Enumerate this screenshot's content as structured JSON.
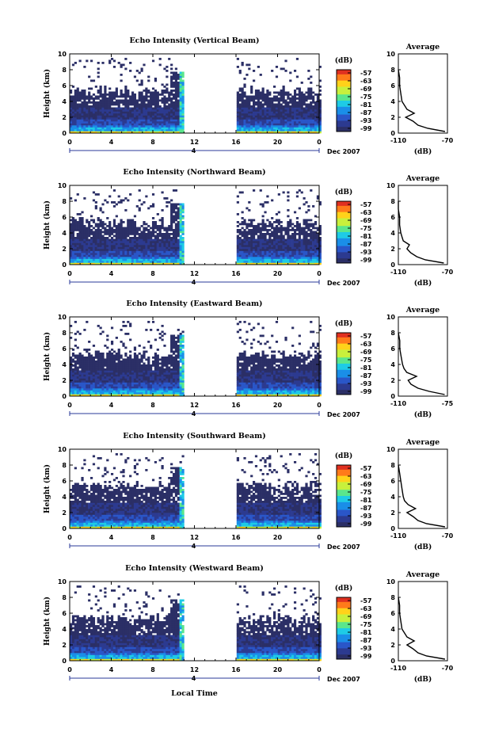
{
  "figure": {
    "xlabel": "Local Time",
    "date_label": "Dec 2007",
    "day_label": "4",
    "colorbar_unit": "(dB)",
    "colorbar_ticks": [
      "-57",
      "-63",
      "-69",
      "-75",
      "-81",
      "-87",
      "-93",
      "-99"
    ],
    "colorbar_colors": [
      "#e03020",
      "#ff7a1a",
      "#ffd21a",
      "#c8f03c",
      "#5ae68c",
      "#1ecbe6",
      "#1a8ee8",
      "#2a56c8",
      "#2c3a90",
      "#2b2f66"
    ],
    "average_title": "Average",
    "average_xlabel": "(dB)"
  },
  "chart_data": [
    {
      "type": "heatmap",
      "title": "Echo Intensity (Vertical Beam)",
      "ylabel": "Height (km)",
      "xlim": [
        0,
        24
      ],
      "ylim": [
        0,
        10
      ],
      "xticks": [
        "0",
        "4",
        "8",
        "12",
        "16",
        "20",
        "0"
      ],
      "yticks": [
        "0",
        "2",
        "4",
        "6",
        "8",
        "10"
      ],
      "color_range_db": [
        -99,
        -57
      ],
      "data_gaps_hours": [
        [
          11,
          16
        ]
      ],
      "average_profile": {
        "xlim": [
          -110,
          -70
        ],
        "xticks": [
          "-110",
          "-70"
        ],
        "height_km": [
          0.2,
          0.6,
          1.0,
          1.5,
          2.0,
          2.5,
          3.0,
          3.5,
          4.0,
          5.0,
          6.0,
          7.0,
          8.0
        ],
        "echo_db": [
          -72,
          -86,
          -94,
          -98,
          -104,
          -97,
          -103,
          -105,
          -107,
          -108,
          -109,
          -109,
          -110
        ]
      }
    },
    {
      "type": "heatmap",
      "title": "Echo Intensity (Northward Beam)",
      "ylabel": "Height (km)",
      "xlim": [
        0,
        24
      ],
      "ylim": [
        0,
        10
      ],
      "xticks": [
        "0",
        "4",
        "8",
        "12",
        "16",
        "20",
        "0"
      ],
      "yticks": [
        "0",
        "2",
        "4",
        "6",
        "8",
        "10"
      ],
      "color_range_db": [
        -99,
        -57
      ],
      "data_gaps_hours": [
        [
          11,
          16
        ]
      ],
      "average_profile": {
        "xlim": [
          -110,
          -70
        ],
        "xticks": [
          "-110",
          "-70"
        ],
        "height_km": [
          0.2,
          0.6,
          1.0,
          1.5,
          2.0,
          2.5,
          3.0,
          3.5,
          4.0,
          5.0,
          6.0,
          7.0,
          8.0
        ],
        "echo_db": [
          -73,
          -88,
          -95,
          -100,
          -103,
          -101,
          -106,
          -107,
          -108,
          -109,
          -109,
          -110,
          -110
        ]
      }
    },
    {
      "type": "heatmap",
      "title": "Echo Intensity (Eastward Beam)",
      "ylabel": "Height (km)",
      "xlim": [
        0,
        24
      ],
      "ylim": [
        0,
        10
      ],
      "xticks": [
        "0",
        "4",
        "8",
        "12",
        "16",
        "20",
        "0"
      ],
      "yticks": [
        "0",
        "2",
        "4",
        "6",
        "8",
        "10"
      ],
      "color_range_db": [
        -99,
        -57
      ],
      "data_gaps_hours": [
        [
          11,
          16
        ]
      ],
      "average_profile": {
        "xlim": [
          -110,
          -75
        ],
        "xticks": [
          "-110",
          "-75"
        ],
        "height_km": [
          0.2,
          0.6,
          1.0,
          1.5,
          2.0,
          2.5,
          3.0,
          3.5,
          4.0,
          5.0,
          6.0,
          7.0,
          8.0
        ],
        "echo_db": [
          -77,
          -88,
          -96,
          -101,
          -103,
          -97,
          -104,
          -106,
          -107,
          -108,
          -109,
          -109,
          -110
        ]
      }
    },
    {
      "type": "heatmap",
      "title": "Echo Intensity (Southward Beam)",
      "ylabel": "Height (km)",
      "xlim": [
        0,
        24
      ],
      "ylim": [
        0,
        10
      ],
      "xticks": [
        "0",
        "4",
        "8",
        "12",
        "16",
        "20",
        "0"
      ],
      "yticks": [
        "0",
        "2",
        "4",
        "6",
        "8",
        "10"
      ],
      "color_range_db": [
        -99,
        -57
      ],
      "data_gaps_hours": [
        [
          11,
          16
        ]
      ],
      "average_profile": {
        "xlim": [
          -110,
          -70
        ],
        "xticks": [
          "-110",
          "-70"
        ],
        "height_km": [
          0.2,
          0.6,
          1.0,
          1.5,
          2.0,
          2.5,
          3.0,
          3.5,
          4.0,
          5.0,
          6.0,
          7.0,
          8.0
        ],
        "echo_db": [
          -72,
          -87,
          -94,
          -98,
          -103,
          -96,
          -102,
          -105,
          -106,
          -107,
          -108,
          -109,
          -110
        ]
      }
    },
    {
      "type": "heatmap",
      "title": "Echo Intensity (Westward Beam)",
      "ylabel": "Height (km)",
      "xlim": [
        0,
        24
      ],
      "ylim": [
        0,
        10
      ],
      "xticks": [
        "0",
        "4",
        "8",
        "12",
        "16",
        "20",
        "0"
      ],
      "yticks": [
        "0",
        "2",
        "4",
        "6",
        "8",
        "10"
      ],
      "color_range_db": [
        -99,
        -57
      ],
      "data_gaps_hours": [
        [
          11,
          16
        ]
      ],
      "average_profile": {
        "xlim": [
          -110,
          -70
        ],
        "xticks": [
          "-110",
          "-70"
        ],
        "height_km": [
          0.2,
          0.6,
          1.0,
          1.5,
          2.0,
          2.5,
          3.0,
          3.5,
          4.0,
          5.0,
          6.0,
          7.0,
          8.0
        ],
        "echo_db": [
          -72,
          -87,
          -94,
          -98,
          -103,
          -97,
          -103,
          -105,
          -107,
          -108,
          -109,
          -109,
          -110
        ]
      }
    }
  ]
}
